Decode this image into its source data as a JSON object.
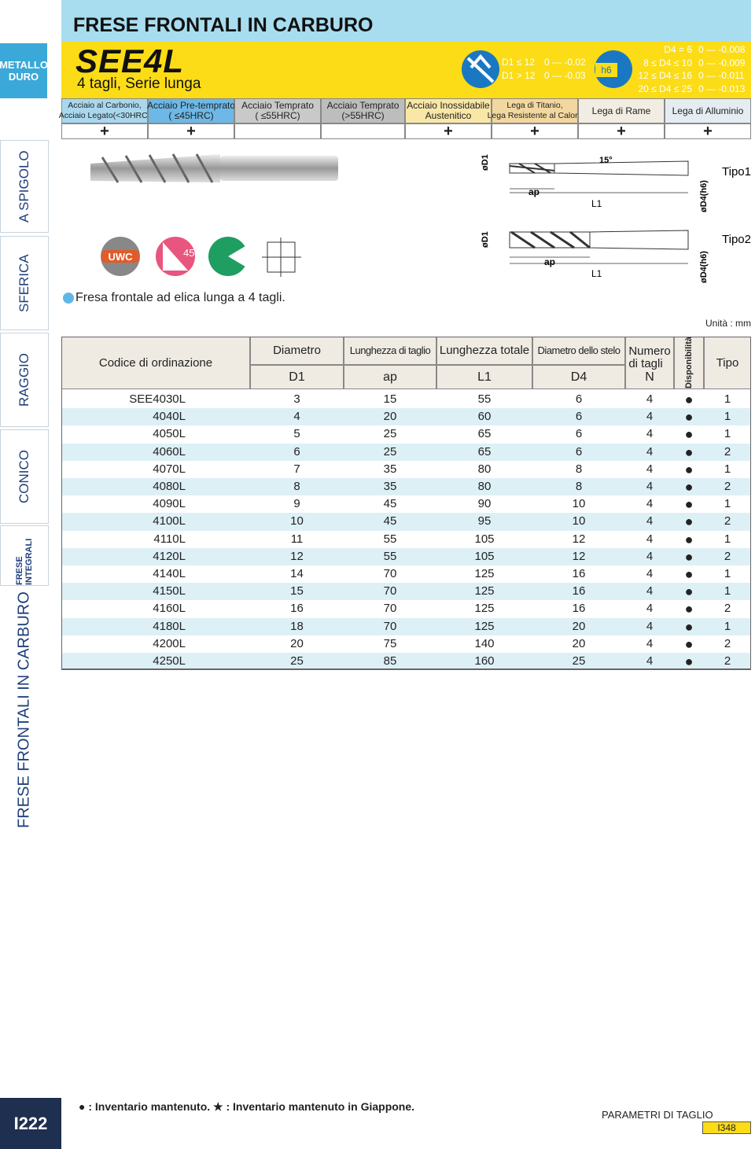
{
  "sidebar": {
    "brand": "METALLO DURO",
    "tabs": [
      "A SPIGOLO",
      "SFERICA",
      "RAGGIO",
      "CONICO",
      "FRESE INTEGRALI",
      "FRESE FRONTALI IN CARBURO"
    ],
    "page": "I222"
  },
  "header": {
    "title": "FRESE FRONTALI IN CARBURO",
    "series": "SEE4L",
    "subtitle": "4 tagli, Serie lunga",
    "d1_tolerances": [
      {
        "range": "D1 ≤ 12",
        "tol": "0 — -0.02"
      },
      {
        "range": "D1 > 12",
        "tol": "0 — -0.03"
      }
    ],
    "h6": "h6",
    "d4_tolerances": [
      {
        "range": "D4 = 6",
        "tol": "0 — -0.008"
      },
      {
        "range": "8 ≤ D4 ≤ 10",
        "tol": "0 — -0.009"
      },
      {
        "range": "12 ≤ D4 ≤ 16",
        "tol": "0 — -0.011"
      },
      {
        "range": "20 ≤ D4 ≤ 25",
        "tol": "0 — -0.013"
      }
    ]
  },
  "materials": [
    {
      "name": [
        "Acciaio al Carbonio,",
        "Acciaio Legato(<30HRC)"
      ],
      "mark": "+"
    },
    {
      "name": [
        "Acciaio Pre-temprato",
        "( ≤45HRC)"
      ],
      "mark": "+"
    },
    {
      "name": [
        "Acciaio Temprato",
        "( ≤55HRC)"
      ]
    },
    {
      "name": [
        "Acciaio Temprato",
        "(>55HRC)"
      ]
    },
    {
      "name": [
        "Acciaio Inossidabile",
        "Austenitico"
      ],
      "mark": "+"
    },
    {
      "name": [
        "Lega di Titanio,",
        "Lega Resistente al Calore"
      ],
      "mark": "+"
    },
    {
      "name": [
        "Lega di Rame"
      ],
      "mark": "+"
    },
    {
      "name": [
        "Lega di Alluminio"
      ],
      "mark": "+"
    }
  ],
  "icons": {
    "coating": "UWC",
    "helix": "45°"
  },
  "description": "Fresa frontale ad elica lunga a 4 tagli.",
  "diagram": {
    "type1": {
      "d1": "øD1",
      "ap": "ap",
      "l1": "L1",
      "angle": "15°",
      "d4": "øD4(h6)",
      "name": "Tipo1"
    },
    "type2": {
      "d1": "øD1",
      "ap": "ap",
      "l1": "L1",
      "d4": "øD4(h6)",
      "name": "Tipo2"
    }
  },
  "unit": "Unità : mm",
  "table": {
    "columns": [
      {
        "label": "Codice di ordinazione"
      },
      {
        "label": "Diametro",
        "symbol": "D1"
      },
      {
        "label": "Lunghezza di taglio",
        "symbol": "ap"
      },
      {
        "label": "Lunghezza totale",
        "symbol": "L1"
      },
      {
        "label": "Diametro dello stelo",
        "symbol": "D4"
      },
      {
        "label": "Numero di tagli",
        "symbol": "N"
      },
      {
        "label": "Disponibilità"
      },
      {
        "label": "Tipo"
      }
    ],
    "rows": [
      [
        "SEE4030L",
        3,
        15,
        55,
        6,
        4,
        "●",
        1
      ],
      [
        "4040L",
        4,
        20,
        60,
        6,
        4,
        "●",
        1
      ],
      [
        "4050L",
        5,
        25,
        65,
        6,
        4,
        "●",
        1
      ],
      [
        "4060L",
        6,
        25,
        65,
        6,
        4,
        "●",
        2
      ],
      [
        "4070L",
        7,
        35,
        80,
        8,
        4,
        "●",
        1
      ],
      [
        "4080L",
        8,
        35,
        80,
        8,
        4,
        "●",
        2
      ],
      [
        "4090L",
        9,
        45,
        90,
        10,
        4,
        "●",
        1
      ],
      [
        "4100L",
        10,
        45,
        95,
        10,
        4,
        "●",
        2
      ],
      [
        "4110L",
        11,
        55,
        105,
        12,
        4,
        "●",
        1
      ],
      [
        "4120L",
        12,
        55,
        105,
        12,
        4,
        "●",
        2
      ],
      [
        "4140L",
        14,
        70,
        125,
        16,
        4,
        "●",
        1
      ],
      [
        "4150L",
        15,
        70,
        125,
        16,
        4,
        "●",
        1
      ],
      [
        "4160L",
        16,
        70,
        125,
        16,
        4,
        "●",
        2
      ],
      [
        "4180L",
        18,
        70,
        125,
        20,
        4,
        "●",
        1
      ],
      [
        "4200L",
        20,
        75,
        140,
        20,
        4,
        "●",
        2
      ],
      [
        "4250L",
        25,
        85,
        160,
        25,
        4,
        "●",
        2
      ]
    ]
  },
  "footer": {
    "legend": "● : Inventario mantenuto.   ★ : Inventario mantenuto in Giappone.",
    "link": "PARAMETRI DI TAGLIO",
    "link_page": "I348"
  }
}
